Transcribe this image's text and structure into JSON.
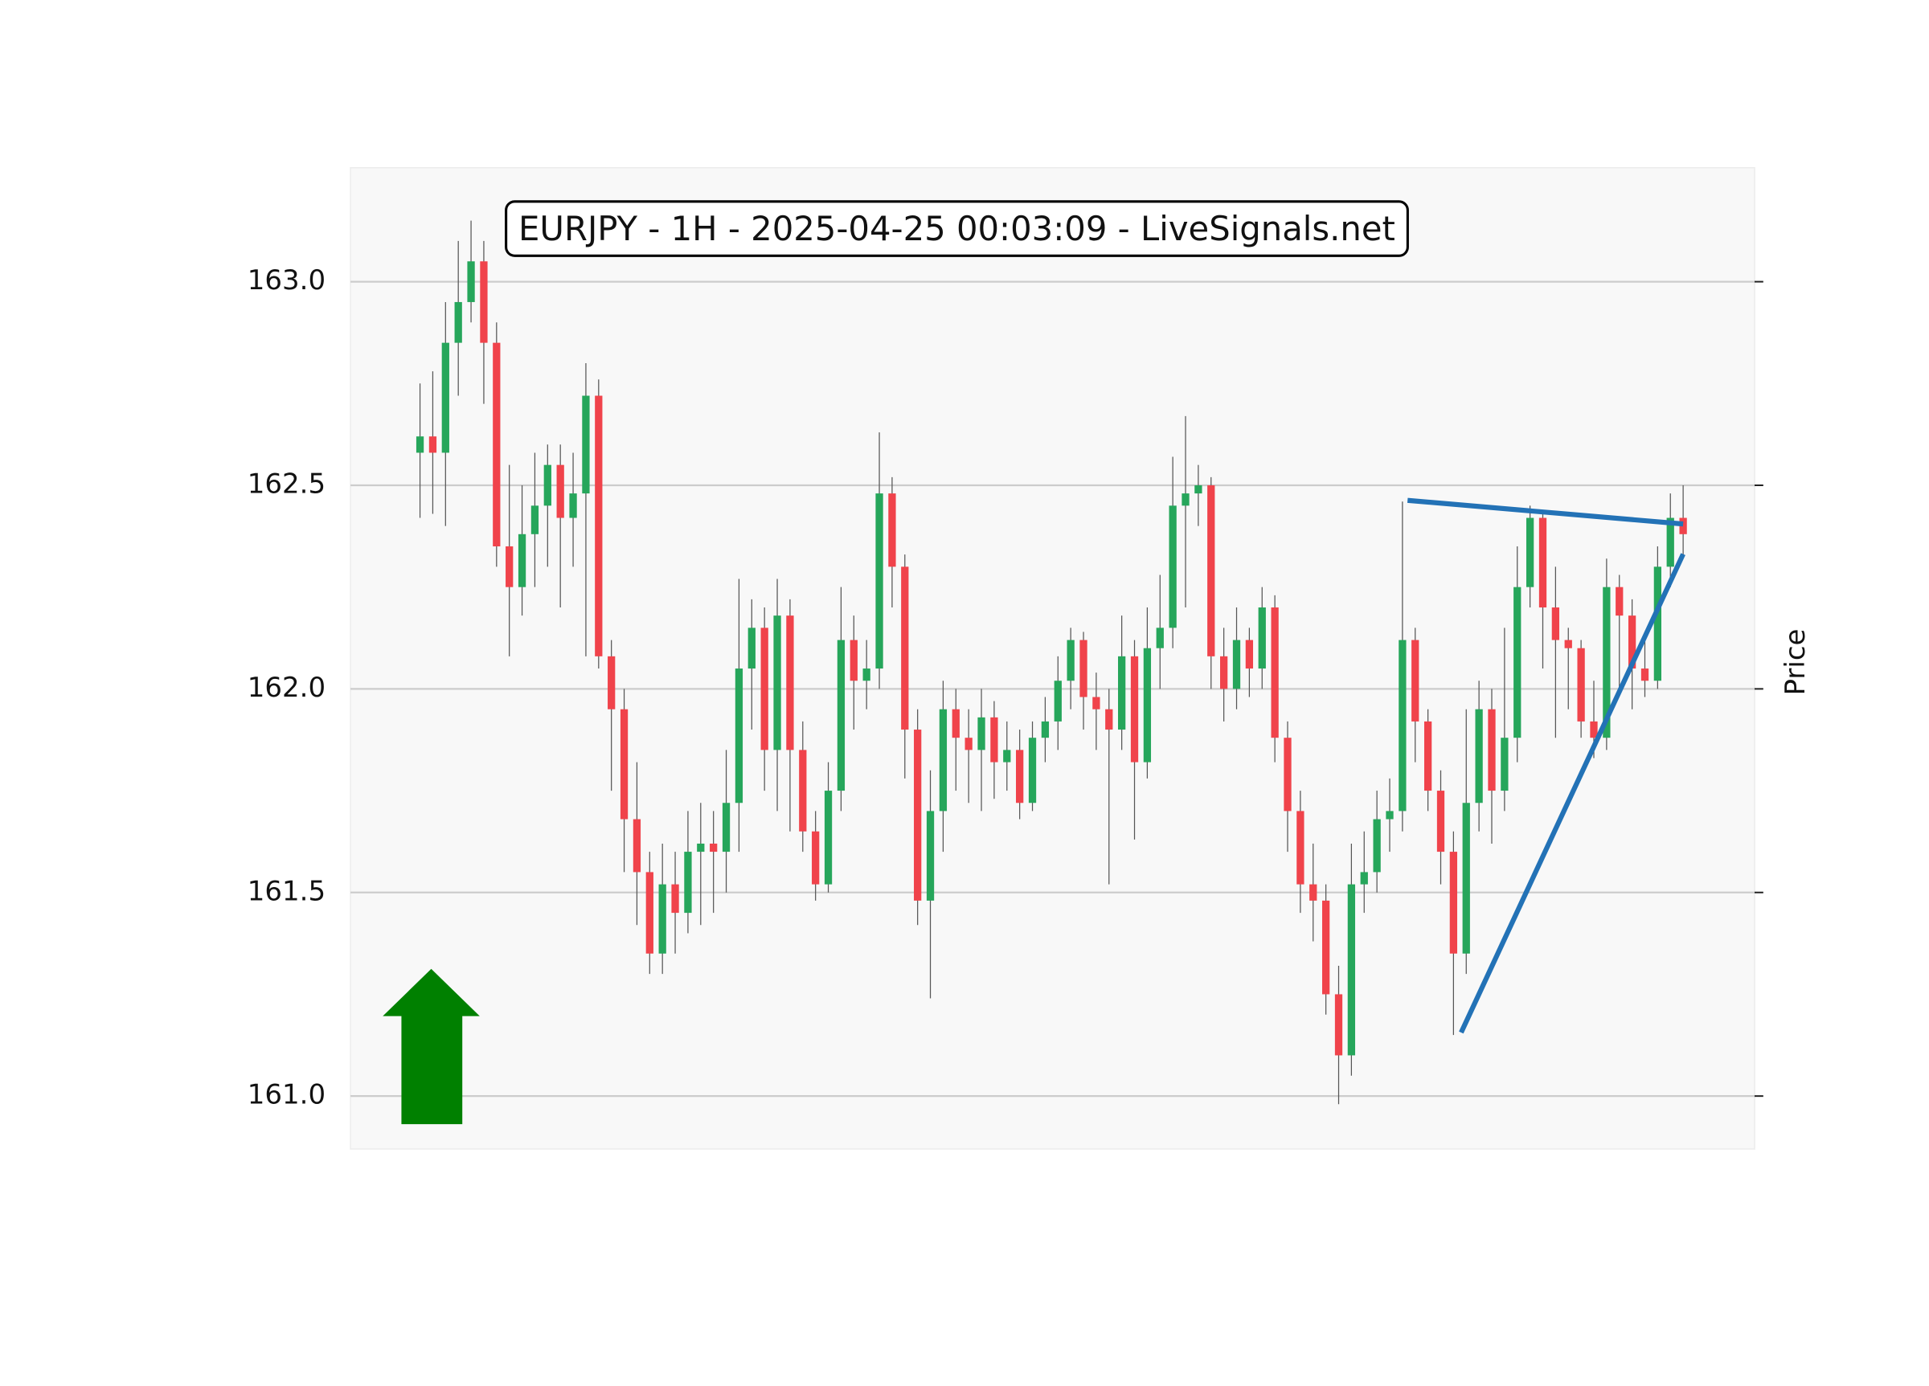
{
  "chart_data": {
    "type": "candlestick",
    "title": "EURJPY - 1H - 2025-04-25 00:03:09 - LiveSignals.net",
    "ylabel": "Price",
    "open": [
      162.58,
      162.62,
      162.58,
      162.85,
      162.95,
      163.05,
      162.85,
      162.35,
      162.25,
      162.38,
      162.45,
      162.55,
      162.42,
      162.48,
      162.72,
      162.08,
      161.95,
      161.68,
      161.55,
      161.35,
      161.52,
      161.45,
      161.6,
      161.62,
      161.6,
      161.72,
      162.05,
      162.15,
      161.85,
      162.18,
      161.85,
      161.65,
      161.52,
      161.75,
      162.12,
      162.02,
      162.05,
      162.48,
      162.3,
      161.9,
      161.48,
      161.7,
      161.95,
      161.88,
      161.85,
      161.93,
      161.82,
      161.85,
      161.72,
      161.88,
      161.92,
      162.02,
      162.12,
      161.98,
      161.95,
      161.9,
      162.08,
      161.82,
      162.1,
      162.15,
      162.45,
      162.48,
      162.5,
      162.08,
      162.0,
      162.12,
      162.05,
      162.2,
      161.88,
      161.7,
      161.52,
      161.48,
      161.25,
      161.1,
      161.52,
      161.55,
      161.68,
      161.7,
      162.12,
      161.92,
      161.75,
      161.6,
      161.35,
      161.72,
      161.95,
      161.75,
      161.88,
      162.25,
      162.42,
      162.2,
      162.12,
      162.1,
      161.92,
      161.88,
      162.25,
      162.18,
      162.05,
      162.02,
      162.3,
      162.42
    ],
    "high": [
      162.75,
      162.78,
      162.95,
      163.1,
      163.15,
      163.1,
      162.9,
      162.55,
      162.5,
      162.58,
      162.6,
      162.6,
      162.58,
      162.8,
      162.76,
      162.12,
      162.0,
      161.82,
      161.6,
      161.62,
      161.6,
      161.7,
      161.72,
      161.7,
      161.85,
      162.27,
      162.22,
      162.2,
      162.27,
      162.22,
      161.92,
      161.7,
      161.82,
      162.25,
      162.18,
      162.12,
      162.63,
      162.52,
      162.33,
      161.95,
      161.8,
      162.02,
      162.0,
      161.95,
      162.0,
      161.97,
      161.92,
      161.9,
      161.92,
      161.98,
      162.08,
      162.15,
      162.14,
      162.04,
      162.0,
      162.18,
      162.12,
      162.2,
      162.28,
      162.57,
      162.67,
      162.55,
      162.52,
      162.15,
      162.2,
      162.15,
      162.25,
      162.23,
      161.92,
      161.75,
      161.62,
      161.52,
      161.32,
      161.62,
      161.65,
      161.75,
      161.78,
      162.46,
      162.15,
      161.95,
      161.8,
      161.65,
      161.95,
      162.02,
      162.0,
      162.15,
      162.35,
      162.45,
      162.43,
      162.3,
      162.15,
      162.12,
      162.02,
      162.32,
      162.28,
      162.22,
      162.12,
      162.35,
      162.48,
      162.5
    ],
    "low": [
      162.42,
      162.43,
      162.4,
      162.72,
      162.9,
      162.7,
      162.3,
      162.08,
      162.18,
      162.25,
      162.3,
      162.2,
      162.3,
      162.08,
      162.05,
      161.75,
      161.55,
      161.42,
      161.3,
      161.3,
      161.35,
      161.4,
      161.42,
      161.45,
      161.5,
      161.6,
      161.9,
      161.75,
      161.7,
      161.65,
      161.6,
      161.48,
      161.5,
      161.7,
      161.9,
      161.95,
      162.0,
      162.2,
      161.78,
      161.42,
      161.24,
      161.6,
      161.75,
      161.72,
      161.7,
      161.73,
      161.75,
      161.68,
      161.7,
      161.82,
      161.85,
      161.95,
      161.9,
      161.85,
      161.52,
      161.85,
      161.63,
      161.78,
      162.0,
      162.1,
      162.2,
      162.4,
      162.0,
      161.92,
      161.95,
      161.98,
      162.0,
      161.82,
      161.6,
      161.45,
      161.38,
      161.2,
      160.98,
      161.05,
      161.45,
      161.5,
      161.6,
      161.65,
      161.82,
      161.7,
      161.52,
      161.15,
      161.3,
      161.65,
      161.62,
      161.7,
      161.82,
      162.2,
      162.05,
      161.88,
      161.95,
      161.88,
      161.83,
      161.85,
      162.0,
      161.95,
      161.98,
      162.0,
      162.25,
      162.32
    ],
    "close": [
      162.62,
      162.58,
      162.85,
      162.95,
      163.05,
      162.85,
      162.35,
      162.25,
      162.38,
      162.45,
      162.55,
      162.42,
      162.48,
      162.72,
      162.08,
      161.95,
      161.68,
      161.55,
      161.35,
      161.52,
      161.45,
      161.6,
      161.62,
      161.6,
      161.72,
      162.05,
      162.15,
      161.85,
      162.18,
      161.85,
      161.65,
      161.52,
      161.75,
      162.12,
      162.02,
      162.05,
      162.48,
      162.3,
      161.9,
      161.48,
      161.7,
      161.95,
      161.88,
      161.85,
      161.93,
      161.82,
      161.85,
      161.72,
      161.88,
      161.92,
      162.02,
      162.12,
      161.98,
      161.95,
      161.9,
      162.08,
      161.82,
      162.1,
      162.15,
      162.45,
      162.48,
      162.5,
      162.08,
      162.0,
      162.12,
      162.05,
      162.2,
      161.88,
      161.7,
      161.52,
      161.48,
      161.25,
      161.1,
      161.52,
      161.55,
      161.68,
      161.7,
      162.12,
      161.92,
      161.75,
      161.6,
      161.35,
      161.72,
      161.95,
      161.75,
      161.88,
      162.25,
      162.42,
      162.2,
      162.12,
      162.1,
      161.92,
      161.88,
      162.25,
      162.18,
      162.05,
      162.02,
      162.3,
      162.42,
      162.38
    ],
    "up_color": "#26a65b",
    "down_color": "#f0434b",
    "xlim": [
      -5.45,
      104.6
    ],
    "ylim": [
      160.87,
      163.28
    ],
    "yticks": [
      {
        "value": 161.0,
        "label": "161.0"
      },
      {
        "value": 161.5,
        "label": "161.5"
      },
      {
        "value": 162.0,
        "label": "162.0"
      },
      {
        "value": 162.5,
        "label": "162.5"
      },
      {
        "value": 163.0,
        "label": "163.0"
      }
    ],
    "grid": true,
    "lines": [
      {
        "x": [
          77.4,
          99
        ],
        "y": [
          162.463,
          162.405
        ],
        "color": "#2372b6"
      },
      {
        "x": [
          81.6,
          99
        ],
        "y": [
          161.156,
          162.331
        ],
        "color": "#2372b6"
      }
    ]
  }
}
